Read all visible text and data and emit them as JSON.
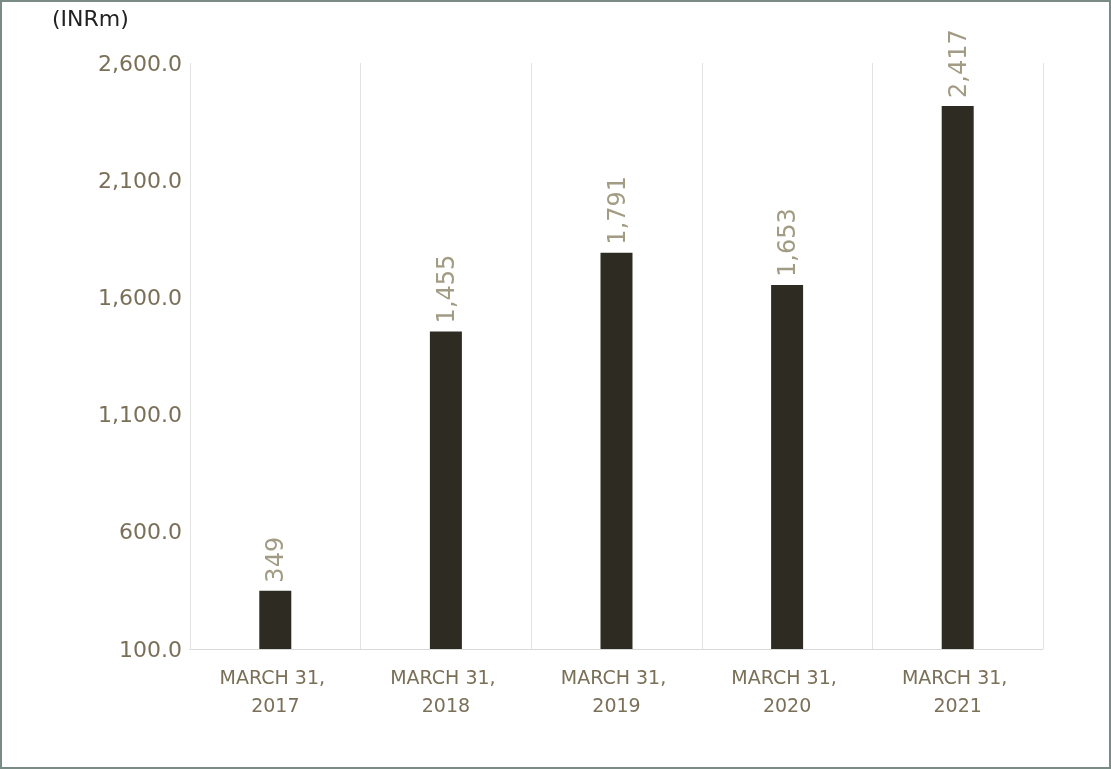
{
  "chart_data": {
    "type": "bar",
    "ylabel": "(INRm)",
    "categories": [
      "MARCH 31, 2017",
      "MARCH 31, 2018",
      "MARCH 31, 2019",
      "MARCH 31, 2020",
      "MARCH 31, 2021"
    ],
    "values": [
      349,
      1455,
      1791,
      1653,
      2417
    ],
    "value_labels": [
      "349",
      "1,455",
      "1,791",
      "1,653",
      "2,417"
    ],
    "color": "#2e2c22",
    "ylim": [
      100,
      2600
    ],
    "yticks": [
      {
        "value": 100,
        "label": "100.0"
      },
      {
        "value": 600,
        "label": "600.0"
      },
      {
        "value": 1100,
        "label": "1,100.0"
      },
      {
        "value": 1600,
        "label": "1,600.0"
      },
      {
        "value": 2100,
        "label": "2,100.0"
      },
      {
        "value": 2600,
        "label": "2,600.0"
      }
    ],
    "grid": "x"
  }
}
